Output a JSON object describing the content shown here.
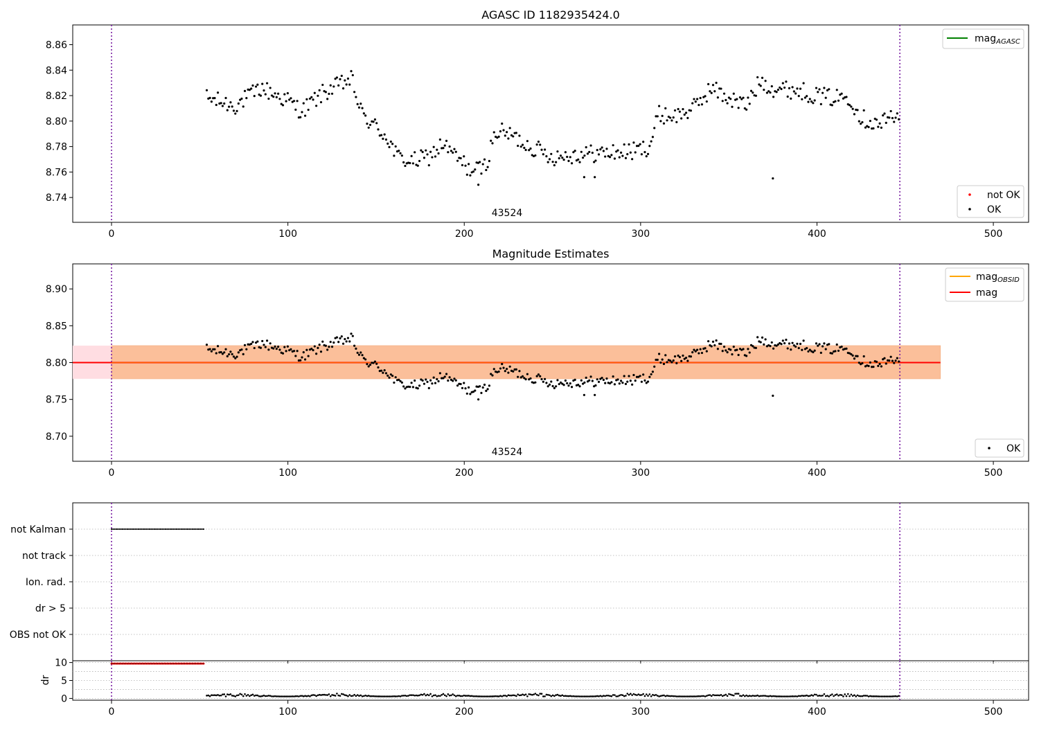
{
  "colors": {
    "ok": "#000000",
    "not_ok": "#ff0000",
    "mag_agasc": "#008000",
    "mag_obsid": "#ffa500",
    "mag": "#ff0000",
    "band_mag_obsid": "#fbbf9a",
    "band_mag": "#ffdde2",
    "vlines": "#7a1fa2",
    "flag_points": "#000000",
    "dr_flag": "#ff0000"
  },
  "chart_data": [
    {
      "type": "scatter",
      "title": "AGASC ID 1182935424.0",
      "annotation": "43524",
      "xlim": [
        -22,
        520
      ],
      "ylim": [
        8.7205,
        8.8755
      ],
      "xticks": [
        0,
        100,
        200,
        300,
        400,
        500
      ],
      "yticks": [
        8.74,
        8.76,
        8.78,
        8.8,
        8.82,
        8.84,
        8.86
      ],
      "vlines": [
        0,
        447
      ],
      "legend_lines": [
        {
          "name": "mag_AGASC",
          "base": "mag",
          "sub": "AGASC",
          "color": "#008000"
        }
      ],
      "legend_points": [
        {
          "name": "not OK",
          "color": "#ff0000"
        },
        {
          "name": "OK",
          "color": "#000000"
        }
      ],
      "series": [
        {
          "name": "OK",
          "x_range": [
            54,
            447
          ],
          "color": "#000000"
        }
      ]
    },
    {
      "type": "scatter",
      "title": "Magnitude Estimates",
      "annotation": "43524",
      "xlim": [
        -22,
        520
      ],
      "ylim": [
        8.666,
        8.934
      ],
      "xticks": [
        0,
        100,
        200,
        300,
        400,
        500
      ],
      "yticks": [
        8.7,
        8.75,
        8.8,
        8.85,
        8.9
      ],
      "vlines": [
        0,
        447
      ],
      "mag": 8.8,
      "mag_band": [
        8.778,
        8.823
      ],
      "mag_band_x": [
        -22,
        470
      ],
      "mag_obsid_band_x": [
        0,
        470
      ],
      "legend_lines": [
        {
          "name": "mag_OBSID",
          "base": "mag",
          "sub": "OBSID",
          "color": "#ffa500"
        },
        {
          "name": "mag",
          "base": "mag",
          "sub": "",
          "color": "#ff0000"
        }
      ],
      "legend_points": [
        {
          "name": "OK",
          "color": "#000000"
        }
      ],
      "series": [
        {
          "name": "OK",
          "x_range": [
            54,
            447
          ],
          "color": "#000000"
        }
      ]
    },
    {
      "type": "scatter",
      "xlim": [
        -22,
        520
      ],
      "xticks": [
        0,
        100,
        200,
        300,
        400,
        500
      ],
      "vlines": [
        0,
        447
      ],
      "categories": [
        "not Kalman",
        "not track",
        "Ion. rad.",
        "dr > 5",
        "OBS not OK"
      ],
      "flagged": [
        {
          "category": "not Kalman",
          "x_range": [
            0,
            53
          ]
        }
      ]
    },
    {
      "type": "scatter",
      "ylabel": "dr",
      "xlim": [
        -22,
        520
      ],
      "ylim": [
        -0.5,
        10.5
      ],
      "xticks": [
        0,
        100,
        200,
        300,
        400,
        500
      ],
      "yticks": [
        0,
        5,
        10
      ],
      "vlines": [
        0,
        447
      ],
      "flag_value": 9.7,
      "flag_x_range": [
        0,
        53
      ],
      "series": [
        {
          "name": "dr",
          "x_range": [
            54,
            447
          ],
          "typical": [
            0.2,
            1.6
          ]
        }
      ]
    }
  ]
}
